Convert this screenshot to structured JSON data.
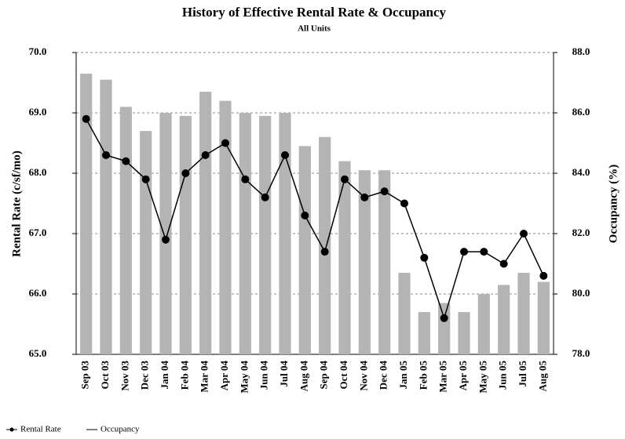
{
  "chart_data": {
    "type": "bar",
    "title": "History of Effective Rental Rate & Occupancy",
    "subtitle": "All Units",
    "y_label": "Rental Rate (c/sf/mo)",
    "y2_label": "Occupancy (%)",
    "categories": [
      "Sep 03",
      "Oct 03",
      "Nov 03",
      "Dec 03",
      "Jan 04",
      "Feb 04",
      "Mar 04",
      "Apr 04",
      "May 04",
      "Jun 04",
      "Jul 04",
      "Aug 04",
      "Sep 04",
      "Oct 04",
      "Nov 04",
      "Dec 04",
      "Jan 05",
      "Feb 05",
      "Mar 05",
      "Apr 05",
      "May 05",
      "Jun 05",
      "Jul 05",
      "Aug 05"
    ],
    "series": [
      {
        "name": "Occupancy",
        "type": "bar",
        "axis": "y2",
        "color": "#b4b4b4",
        "values": [
          87.3,
          87.1,
          86.2,
          85.4,
          86.0,
          85.9,
          86.7,
          86.4,
          86.0,
          85.9,
          86.0,
          84.9,
          85.2,
          84.4,
          84.1,
          84.1,
          80.7,
          79.4,
          79.7,
          79.4,
          80.0,
          80.3,
          80.7,
          80.4
        ]
      },
      {
        "name": "Rental Rate",
        "type": "line",
        "axis": "y",
        "color": "#000000",
        "values": [
          68.9,
          68.3,
          68.2,
          67.9,
          66.9,
          68.0,
          68.3,
          68.5,
          67.9,
          67.6,
          68.3,
          67.3,
          66.7,
          67.9,
          67.6,
          67.7,
          67.5,
          66.6,
          65.6,
          66.7,
          66.7,
          66.5,
          67.0,
          66.3
        ]
      }
    ],
    "ylim": [
      65,
      70
    ],
    "yticks": [
      {
        "value": 65,
        "label": "65.0"
      },
      {
        "value": 66,
        "label": "66.0"
      },
      {
        "value": 67,
        "label": "67.0"
      },
      {
        "value": 68,
        "label": "68.0"
      },
      {
        "value": 69,
        "label": "69.0"
      },
      {
        "value": 70,
        "label": "70.0"
      }
    ],
    "y2lim": [
      78,
      88
    ],
    "y2ticks": [
      {
        "value": 78,
        "label": "78.0"
      },
      {
        "value": 80,
        "label": "80.0"
      },
      {
        "value": 82,
        "label": "82.0"
      },
      {
        "value": 84,
        "label": "84.0"
      },
      {
        "value": 86,
        "label": "86.0"
      },
      {
        "value": 88,
        "label": "88.0"
      }
    ],
    "grid": true
  }
}
